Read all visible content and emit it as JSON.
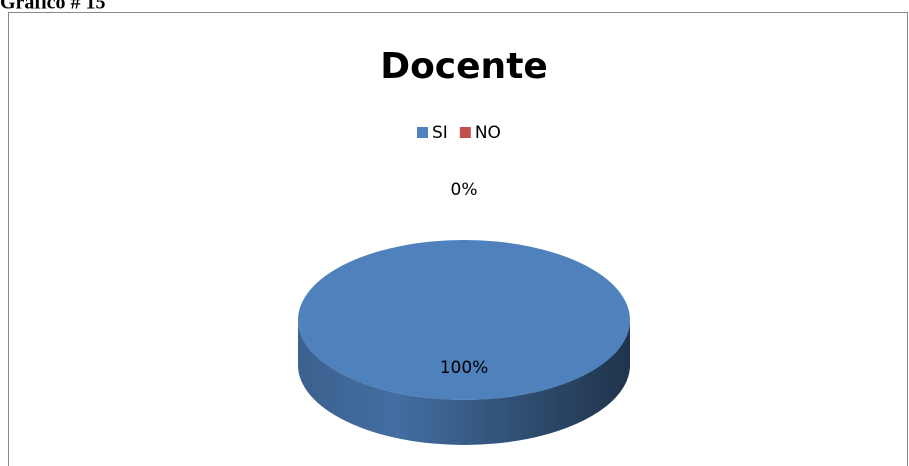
{
  "caption": "Gráfico # 15",
  "chart_data": {
    "type": "pie",
    "title": "Docente",
    "categories": [
      "SI",
      "NO"
    ],
    "values": [
      100,
      0
    ],
    "value_labels": [
      "100%",
      "0%"
    ],
    "colors": [
      "#4f81bd",
      "#c0504d"
    ],
    "legend": "top"
  }
}
